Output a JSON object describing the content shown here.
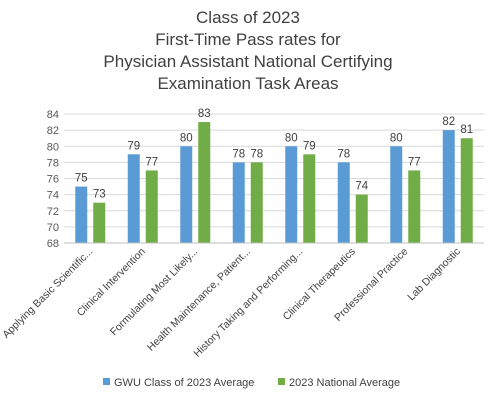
{
  "chart_data": {
    "type": "bar",
    "title_lines": [
      "Class of 2023",
      "First-Time Pass rates for",
      "Physician Assistant National Certifying",
      "Examination Task Areas"
    ],
    "categories": [
      "Applying Basic Scientific...",
      "Clinical Intervention",
      "Formulating Most Likely...",
      "Health Maintenance, Patient...",
      "History Taking and Performing...",
      "Clinical Therapeutics",
      "Professional Practice",
      "Lab Diagnostic"
    ],
    "series": [
      {
        "name": "GWU Class of 2023 Average",
        "color": "#5B9BD5",
        "values": [
          75,
          79,
          80,
          78,
          80,
          78,
          80,
          82
        ]
      },
      {
        "name": "2023 National Average",
        "color": "#70AD47",
        "values": [
          73,
          77,
          83,
          78,
          79,
          74,
          77,
          81
        ]
      }
    ],
    "ylim": [
      68,
      84
    ],
    "yticks": [
      68,
      70,
      72,
      74,
      76,
      78,
      80,
      82,
      84
    ],
    "grid": true,
    "legend_position": "bottom"
  }
}
